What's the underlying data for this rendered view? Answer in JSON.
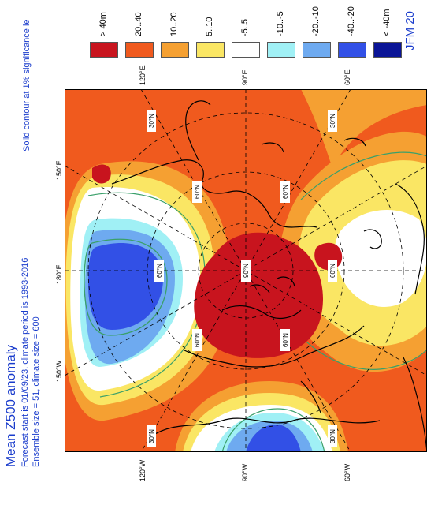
{
  "title": "Mean Z500 anomaly",
  "subtitle_line1": "Forecast start is 01/09/23, climate period is 1993-2016",
  "subtitle_line2": "Ensemble size = 51, climate size = 600",
  "right_title": "JFM 20",
  "right_subtitle": "Solid contour at 1% significance le",
  "legend": [
    {
      "label": "> 40m",
      "color": "#c8141e"
    },
    {
      "label": "20..40",
      "color": "#f05a1e"
    },
    {
      "label": "10..20",
      "color": "#f5a032"
    },
    {
      "label": "5..10",
      "color": "#fae664"
    },
    {
      "label": "-5..5",
      "color": "#ffffff"
    },
    {
      "label": "-10..-5",
      "color": "#a0f0f5"
    },
    {
      "label": "-20..-10",
      "color": "#6eaaf0"
    },
    {
      "label": "-40..-20",
      "color": "#3250e6"
    },
    {
      "label": "< -40m",
      "color": "#0a1496"
    }
  ],
  "lon_labels": {
    "l120w": "120°W",
    "l90w": "90°W",
    "l60w": "60°W",
    "l150w": "150°W",
    "l180": "180°E",
    "l150e": "150°E",
    "l120e": "120°E",
    "l90e": "90°E",
    "l60e": "60°E"
  },
  "lat_labels": {
    "n30": "30°N",
    "n60": "60°N",
    "n90": "90°N"
  }
}
